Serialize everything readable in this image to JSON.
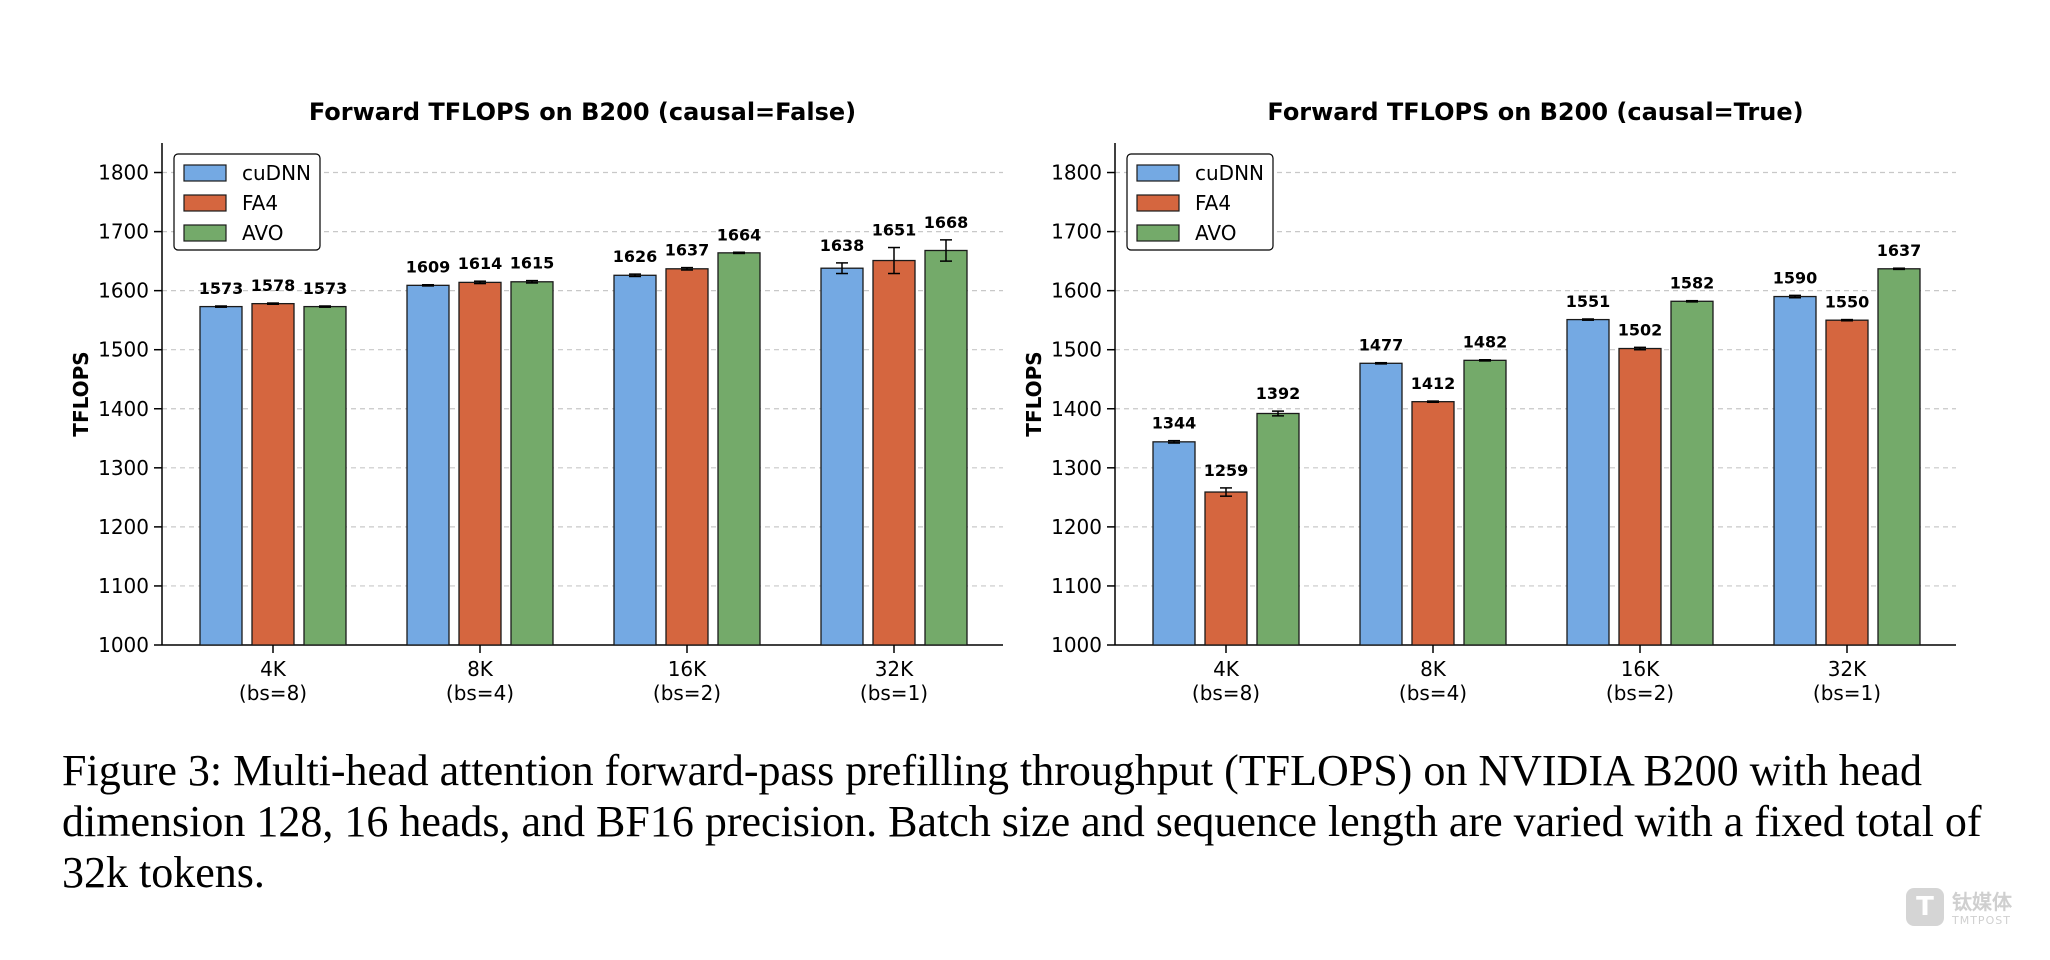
{
  "chart_data": [
    {
      "type": "bar",
      "title": "Forward TFLOPS on B200 (causal=False)",
      "ylabel": "TFLOPS",
      "xlabel": "",
      "ylim": [
        1000,
        1850
      ],
      "yticks": [
        1000,
        1100,
        1200,
        1300,
        1400,
        1500,
        1600,
        1700,
        1800
      ],
      "grid": "y-dashed",
      "legend_position": "top-left",
      "categories": [
        "4K",
        "8K",
        "16K",
        "32K"
      ],
      "category_sublabels": [
        "(bs=8)",
        "(bs=4)",
        "(bs=2)",
        "(bs=1)"
      ],
      "series": [
        {
          "name": "cuDNN",
          "color": "#74a9e3",
          "values": [
            1573,
            1609,
            1626,
            1638
          ],
          "errors": [
            1,
            1,
            2,
            9
          ]
        },
        {
          "name": "FA4",
          "color": "#d5663f",
          "values": [
            1578,
            1614,
            1637,
            1651
          ],
          "errors": [
            1,
            2,
            2,
            22
          ]
        },
        {
          "name": "AVO",
          "color": "#74aa6a",
          "values": [
            1573,
            1615,
            1664,
            1668
          ],
          "errors": [
            1,
            2,
            1,
            18
          ]
        }
      ]
    },
    {
      "type": "bar",
      "title": "Forward TFLOPS on B200 (causal=True)",
      "ylabel": "TFLOPS",
      "xlabel": "",
      "ylim": [
        1000,
        1850
      ],
      "yticks": [
        1000,
        1100,
        1200,
        1300,
        1400,
        1500,
        1600,
        1700,
        1800
      ],
      "grid": "y-dashed",
      "legend_position": "top-left",
      "categories": [
        "4K",
        "8K",
        "16K",
        "32K"
      ],
      "category_sublabels": [
        "(bs=8)",
        "(bs=4)",
        "(bs=2)",
        "(bs=1)"
      ],
      "series": [
        {
          "name": "cuDNN",
          "color": "#74a9e3",
          "values": [
            1344,
            1477,
            1551,
            1590
          ],
          "errors": [
            2,
            1,
            1,
            2
          ]
        },
        {
          "name": "FA4",
          "color": "#d5663f",
          "values": [
            1259,
            1412,
            1502,
            1550
          ],
          "errors": [
            7,
            1,
            2,
            1
          ]
        },
        {
          "name": "AVO",
          "color": "#74aa6a",
          "values": [
            1392,
            1482,
            1582,
            1637
          ],
          "errors": [
            4,
            1,
            1,
            1
          ]
        }
      ]
    }
  ],
  "caption": "Figure 3: Multi-head attention forward-pass prefilling throughput (TFLOPS) on NVIDIA B200 with head dimension 128, 16 heads, and BF16 precision. Batch size and sequence length are varied with a fixed total of 32k tokens.",
  "watermark": {
    "icon": "T",
    "cn": "钛媒体",
    "en": "TMTPOST"
  }
}
